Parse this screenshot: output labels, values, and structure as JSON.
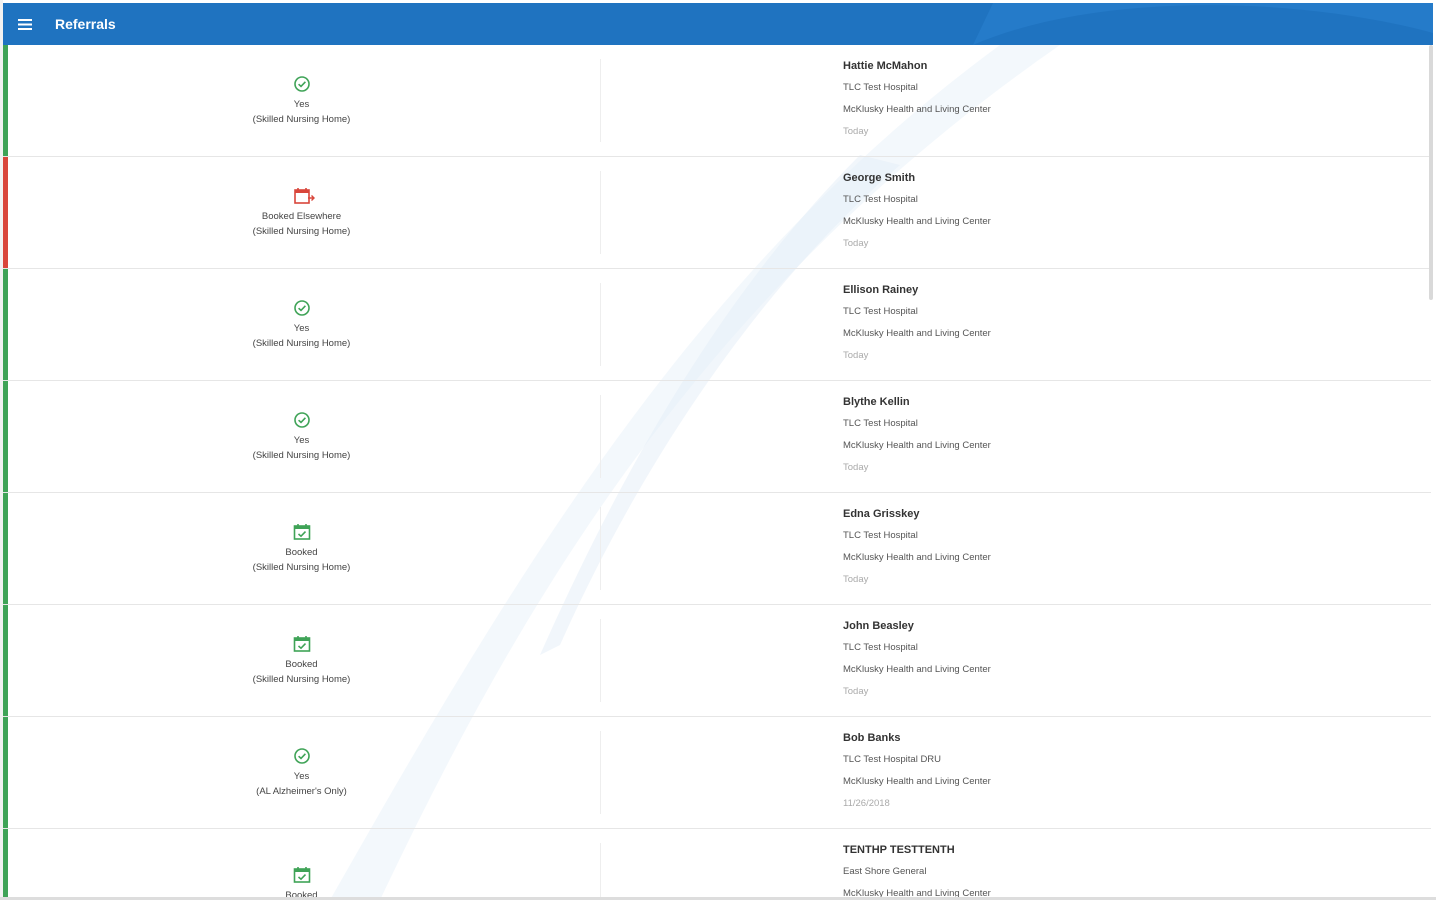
{
  "header": {
    "title": "Referrals",
    "menu_icon": "hamburger-menu-icon",
    "color": "#1f73c0"
  },
  "colors": {
    "accepted": "#3fa357",
    "declined": "#d9463b"
  },
  "referrals": [
    {
      "status": "Yes",
      "care_type": "(Skilled Nursing Home)",
      "status_icon": "check-circle-icon",
      "status_color": "#3fa357",
      "patient": "Hattie McMahon",
      "hospital": "TLC Test Hospital",
      "facility": "McKlusky Health and Living Center",
      "date": "Today"
    },
    {
      "status": "Booked Elsewhere",
      "care_type": "(Skilled Nursing Home)",
      "status_icon": "calendar-arrow-icon",
      "status_color": "#d9463b",
      "patient": "George Smith",
      "hospital": "TLC Test Hospital",
      "facility": "McKlusky Health and Living Center",
      "date": "Today"
    },
    {
      "status": "Yes",
      "care_type": "(Skilled Nursing Home)",
      "status_icon": "check-circle-icon",
      "status_color": "#3fa357",
      "patient": "Ellison Rainey",
      "hospital": "TLC Test Hospital",
      "facility": "McKlusky Health and Living Center",
      "date": "Today"
    },
    {
      "status": "Yes",
      "care_type": "(Skilled Nursing Home)",
      "status_icon": "check-circle-icon",
      "status_color": "#3fa357",
      "patient": "Blythe Kellin",
      "hospital": "TLC Test Hospital",
      "facility": "McKlusky Health and Living Center",
      "date": "Today"
    },
    {
      "status": "Booked",
      "care_type": "(Skilled Nursing Home)",
      "status_icon": "calendar-check-icon",
      "status_color": "#3fa357",
      "patient": "Edna Grisskey",
      "hospital": "TLC Test Hospital",
      "facility": "McKlusky Health and Living Center",
      "date": "Today"
    },
    {
      "status": "Booked",
      "care_type": "(Skilled Nursing Home)",
      "status_icon": "calendar-check-icon",
      "status_color": "#3fa357",
      "patient": "John Beasley",
      "hospital": "TLC Test Hospital",
      "facility": "McKlusky Health and Living Center",
      "date": "Today"
    },
    {
      "status": "Yes",
      "care_type": "(AL Alzheimer's Only)",
      "status_icon": "check-circle-icon",
      "status_color": "#3fa357",
      "patient": "Bob Banks",
      "hospital": "TLC Test Hospital DRU",
      "facility": "McKlusky Health and Living Center",
      "date": "11/26/2018"
    },
    {
      "status": "Booked",
      "care_type": "",
      "status_icon": "calendar-check-icon",
      "status_color": "#3fa357",
      "patient": "TENTHP TESTTENTH",
      "hospital": "East Shore General",
      "facility": "McKlusky Health and Living Center",
      "date": ""
    }
  ]
}
